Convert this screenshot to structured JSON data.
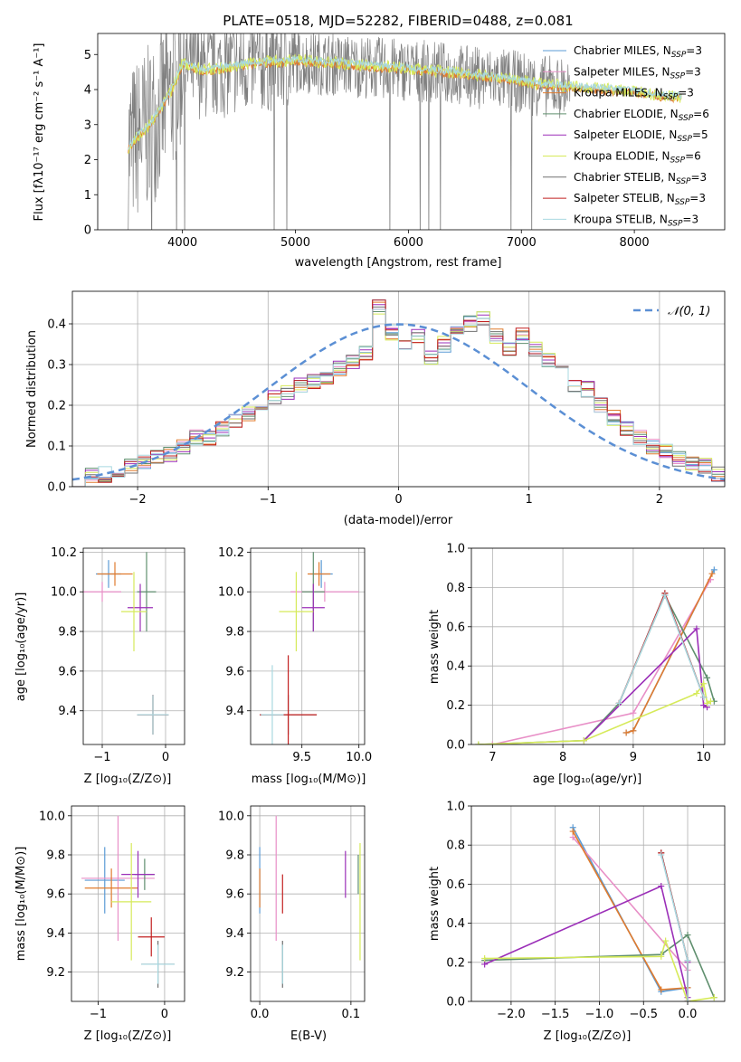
{
  "colors": {
    "Chabrier MILES": "#5b9bd5",
    "Salpeter MILES": "#e88fc7",
    "Kroupa MILES": "#e07b2e",
    "Chabrier ELODIE": "#5f8f6e",
    "Salpeter ELODIE": "#9b2fb8",
    "Kroupa ELODIE": "#d6ea5a",
    "Chabrier STELIB": "#707070",
    "Salpeter STELIB": "#c22020",
    "Kroupa STELIB": "#a8d8e0",
    "normal": "#5b8fd4"
  },
  "chart_data": [
    {
      "type": "line",
      "title": "PLATE=0518, MJD=52282, FIBERID=0488, z=0.081",
      "xlabel": "wavelength [Angstrom, rest frame]",
      "ylabel": "Flux [fλ10⁻¹⁷ erg cm⁻² s⁻¹ A⁻¹]",
      "xlim": [
        3250,
        8800
      ],
      "ylim": [
        0,
        5.6
      ],
      "xticks": [
        4000,
        5000,
        6000,
        7000,
        8000
      ],
      "yticks": [
        0,
        1,
        2,
        3,
        4,
        5
      ],
      "legend_position": "top-right",
      "legend": [
        {
          "name": "Chabrier MILES",
          "sub": "SSP",
          "n": "=3"
        },
        {
          "name": "Salpeter MILES",
          "sub": "SSP",
          "n": "=3"
        },
        {
          "name": "Kroupa MILES",
          "sub": "SSP",
          "n": "=3"
        },
        {
          "name": "Chabrier ELODIE",
          "sub": "SSP",
          "n": "=6"
        },
        {
          "name": "Salpeter ELODIE",
          "sub": "SSP",
          "n": "=5"
        },
        {
          "name": "Kroupa ELODIE",
          "sub": "SSP",
          "n": "=6"
        },
        {
          "name": "Chabrier STELIB",
          "sub": "SSP",
          "n": "=3"
        },
        {
          "name": "Salpeter STELIB",
          "sub": "SSP",
          "n": "=3"
        },
        {
          "name": "Kroupa STELIB",
          "sub": "SSP",
          "n": "=3"
        }
      ],
      "observed_series_color": "#808080",
      "model_continuum": {
        "x": [
          3520,
          3600,
          3700,
          3800,
          3900,
          4000,
          4100,
          4200,
          4400,
          4600,
          4800,
          5000,
          5200,
          5400,
          5600,
          5800,
          6000,
          6200,
          6400,
          6600,
          6800,
          7000,
          7200,
          7400,
          7600,
          7800,
          8000,
          8200,
          8400
        ],
        "y": [
          2.3,
          2.6,
          2.9,
          3.4,
          3.9,
          4.7,
          4.6,
          4.5,
          4.6,
          4.7,
          4.75,
          4.8,
          4.75,
          4.7,
          4.65,
          4.6,
          4.55,
          4.5,
          4.45,
          4.35,
          4.3,
          4.2,
          4.1,
          4.05,
          4.0,
          3.95,
          3.9,
          3.8,
          3.75
        ]
      }
    },
    {
      "type": "histogram",
      "xlabel": "(data-model)/error",
      "ylabel": "Normed distribution",
      "xlim": [
        -2.5,
        2.5
      ],
      "ylim": [
        0,
        0.48
      ],
      "xticks": [
        -2,
        -1,
        0,
        1,
        2
      ],
      "yticks": [
        0.0,
        0.1,
        0.2,
        0.3,
        0.4
      ],
      "legend_position": "top-right",
      "legend_label": "𝒩(0, 1)",
      "bin_width": 0.1,
      "bins_start": -2.5,
      "values": [
        0.02,
        0.03,
        0.03,
        0.04,
        0.05,
        0.06,
        0.07,
        0.08,
        0.1,
        0.12,
        0.12,
        0.14,
        0.16,
        0.18,
        0.2,
        0.22,
        0.23,
        0.25,
        0.26,
        0.27,
        0.29,
        0.31,
        0.33,
        0.44,
        0.38,
        0.35,
        0.37,
        0.32,
        0.35,
        0.38,
        0.4,
        0.41,
        0.37,
        0.34,
        0.37,
        0.34,
        0.31,
        0.3,
        0.25,
        0.24,
        0.2,
        0.17,
        0.14,
        0.12,
        0.1,
        0.09,
        0.07,
        0.06,
        0.05,
        0.03
      ]
    },
    {
      "type": "errorbar",
      "xlabel": "Z [log₁₀(Z/Z⊙)]",
      "ylabel": "age  [log₁₀(age/yr)]",
      "xlim": [
        -1.3,
        0.3
      ],
      "ylim": [
        9.23,
        10.22
      ],
      "xticks": [
        -1,
        0
      ],
      "yticks": [
        9.4,
        9.6,
        9.8,
        10.0,
        10.2
      ],
      "points": [
        {
          "series": "Chabrier MILES",
          "x": -0.9,
          "y": 10.09,
          "xerr": 0.2,
          "yerr": 0.07
        },
        {
          "series": "Salpeter MILES",
          "x": -1.0,
          "y": 10.0,
          "xerr": 0.3,
          "yerr": 0.05
        },
        {
          "series": "Kroupa MILES",
          "x": -0.8,
          "y": 10.09,
          "xerr": 0.28,
          "yerr": 0.06
        },
        {
          "series": "Chabrier ELODIE",
          "x": -0.3,
          "y": 10.0,
          "xerr": 0.15,
          "yerr": 0.2
        },
        {
          "series": "Salpeter ELODIE",
          "x": -0.4,
          "y": 9.92,
          "xerr": 0.2,
          "yerr": 0.12
        },
        {
          "series": "Kroupa ELODIE",
          "x": -0.5,
          "y": 9.9,
          "xerr": 0.2,
          "yerr": 0.2
        },
        {
          "series": "Chabrier STELIB",
          "x": -0.2,
          "y": 9.38,
          "xerr": 0.25,
          "yerr": 0.1
        },
        {
          "series": "Salpeter STELIB",
          "x": -0.2,
          "y": 9.38,
          "xerr": 0.25,
          "yerr": 0.1
        },
        {
          "series": "Kroupa STELIB",
          "x": -0.2,
          "y": 9.38,
          "xerr": 0.25,
          "yerr": 0.1
        }
      ]
    },
    {
      "type": "errorbar",
      "xlabel": "mass [log₁₀(M/M⊙)]",
      "xlim": [
        9.05,
        10.05
      ],
      "ylim": [
        9.23,
        10.22
      ],
      "xticks": [
        9.5,
        10.0
      ],
      "yticks": [
        9.4,
        9.6,
        9.8,
        10.0,
        10.2
      ],
      "points": [
        {
          "series": "Chabrier MILES",
          "x": 9.67,
          "y": 10.09,
          "xerr": 0.1,
          "yerr": 0.07
        },
        {
          "series": "Salpeter MILES",
          "x": 9.7,
          "y": 10.0,
          "xerr": 0.3,
          "yerr": 0.05
        },
        {
          "series": "Kroupa MILES",
          "x": 9.65,
          "y": 10.09,
          "xerr": 0.1,
          "yerr": 0.06
        },
        {
          "series": "Chabrier ELODIE",
          "x": 9.6,
          "y": 10.0,
          "xerr": 0.1,
          "yerr": 0.2
        },
        {
          "series": "Salpeter ELODIE",
          "x": 9.6,
          "y": 9.92,
          "xerr": 0.1,
          "yerr": 0.12
        },
        {
          "series": "Kroupa ELODIE",
          "x": 9.45,
          "y": 9.9,
          "xerr": 0.15,
          "yerr": 0.2
        },
        {
          "series": "Chabrier STELIB",
          "x": 9.38,
          "y": 9.38,
          "xerr": 0.25,
          "yerr": 0.1
        },
        {
          "series": "Salpeter STELIB",
          "x": 9.38,
          "y": 9.38,
          "xerr": 0.25,
          "yerr": 0.3
        },
        {
          "series": "Kroupa STELIB",
          "x": 9.24,
          "y": 9.38,
          "xerr": 0.1,
          "yerr": 0.25
        }
      ]
    },
    {
      "type": "line",
      "xlabel": "age  [log₁₀(age/yr)]",
      "ylabel": "mass weight",
      "xlim": [
        6.7,
        10.3
      ],
      "ylim": [
        0,
        1.0
      ],
      "xticks": [
        7,
        8,
        9,
        10
      ],
      "yticks": [
        0.0,
        0.2,
        0.4,
        0.6,
        0.8,
        1.0
      ],
      "series": [
        {
          "name": "Chabrier MILES",
          "x": [
            8.9,
            9.0,
            10.15
          ],
          "y": [
            0.06,
            0.07,
            0.89
          ]
        },
        {
          "name": "Salpeter MILES",
          "x": [
            7.0,
            9.0,
            10.1
          ],
          "y": [
            0.0,
            0.16,
            0.84
          ]
        },
        {
          "name": "Kroupa MILES",
          "x": [
            8.9,
            9.0,
            10.12
          ],
          "y": [
            0.06,
            0.07,
            0.87
          ]
        },
        {
          "name": "Chabrier ELODIE",
          "x": [
            6.8,
            8.3,
            8.8,
            9.45,
            10.05,
            10.15
          ],
          "y": [
            0.0,
            0.02,
            0.21,
            0.76,
            0.34,
            0.22
          ]
        },
        {
          "name": "Salpeter ELODIE",
          "x": [
            8.3,
            9.9,
            10.0,
            10.05
          ],
          "y": [
            0.02,
            0.59,
            0.2,
            0.19
          ]
        },
        {
          "name": "Kroupa ELODIE",
          "x": [
            6.8,
            8.3,
            9.9,
            10.0,
            10.05,
            10.1
          ],
          "y": [
            0.0,
            0.02,
            0.26,
            0.31,
            0.21,
            0.22
          ]
        },
        {
          "name": "Chabrier STELIB",
          "x": [
            8.8,
            9.45,
            10.0
          ],
          "y": [
            0.21,
            0.77,
            0.24
          ]
        },
        {
          "name": "Salpeter STELIB",
          "x": [
            8.8,
            9.45,
            10.0
          ],
          "y": [
            0.21,
            0.77,
            0.24
          ]
        },
        {
          "name": "Kroupa STELIB",
          "x": [
            8.8,
            9.45,
            10.0
          ],
          "y": [
            0.21,
            0.76,
            0.24
          ]
        }
      ]
    },
    {
      "type": "errorbar",
      "xlabel": "Z [log₁₀(Z/Z⊙)]",
      "ylabel": "mass [log₁₀(M/M⊙)]",
      "xlim": [
        -1.4,
        0.3
      ],
      "ylim": [
        9.05,
        10.05
      ],
      "xticks": [
        -1,
        0
      ],
      "yticks": [
        9.2,
        9.4,
        9.6,
        9.8,
        10.0
      ],
      "points": [
        {
          "series": "Chabrier MILES",
          "x": -0.9,
          "y": 9.67,
          "xerr": 0.3,
          "yerr": 0.17
        },
        {
          "series": "Salpeter MILES",
          "x": -0.7,
          "y": 9.68,
          "xerr": 0.55,
          "yerr": 0.32
        },
        {
          "series": "Kroupa MILES",
          "x": -0.8,
          "y": 9.63,
          "xerr": 0.4,
          "yerr": 0.1
        },
        {
          "series": "Chabrier ELODIE",
          "x": -0.3,
          "y": 9.7,
          "xerr": 0.15,
          "yerr": 0.08
        },
        {
          "series": "Salpeter ELODIE",
          "x": -0.4,
          "y": 9.7,
          "xerr": 0.25,
          "yerr": 0.12
        },
        {
          "series": "Kroupa ELODIE",
          "x": -0.5,
          "y": 9.56,
          "xerr": 0.3,
          "yerr": 0.3
        },
        {
          "series": "Chabrier STELIB",
          "x": -0.1,
          "y": 9.24,
          "xerr": 0.25,
          "yerr": 0.12
        },
        {
          "series": "Salpeter STELIB",
          "x": -0.2,
          "y": 9.38,
          "xerr": 0.2,
          "yerr": 0.1
        },
        {
          "series": "Kroupa STELIB",
          "x": -0.1,
          "y": 9.24,
          "xerr": 0.25,
          "yerr": 0.1
        }
      ]
    },
    {
      "type": "errorbar",
      "xlabel": "E(B-V)",
      "xlim": [
        -0.01,
        0.115
      ],
      "ylim": [
        9.05,
        10.05
      ],
      "xticks": [
        0.0,
        0.1
      ],
      "yticks": [
        9.2,
        9.4,
        9.6,
        9.8,
        10.0
      ],
      "points": [
        {
          "series": "Chabrier MILES",
          "x": 0.0,
          "y": 9.67,
          "xerr": 0,
          "yerr": 0.17
        },
        {
          "series": "Salpeter MILES",
          "x": 0.018,
          "y": 9.68,
          "xerr": 0,
          "yerr": 0.32
        },
        {
          "series": "Kroupa MILES",
          "x": 0.0,
          "y": 9.63,
          "xerr": 0,
          "yerr": 0.1
        },
        {
          "series": "Chabrier ELODIE",
          "x": 0.108,
          "y": 9.7,
          "xerr": 0,
          "yerr": 0.1
        },
        {
          "series": "Salpeter ELODIE",
          "x": 0.094,
          "y": 9.7,
          "xerr": 0,
          "yerr": 0.12
        },
        {
          "series": "Kroupa ELODIE",
          "x": 0.11,
          "y": 9.56,
          "xerr": 0,
          "yerr": 0.3
        },
        {
          "series": "Chabrier STELIB",
          "x": 0.025,
          "y": 9.24,
          "xerr": 0,
          "yerr": 0.12
        },
        {
          "series": "Salpeter STELIB",
          "x": 0.025,
          "y": 9.6,
          "xerr": 0,
          "yerr": 0.1
        },
        {
          "series": "Kroupa STELIB",
          "x": 0.025,
          "y": 9.24,
          "xerr": 0,
          "yerr": 0.1
        }
      ]
    },
    {
      "type": "line",
      "xlabel": "Z [log₁₀(Z/Z⊙)]",
      "ylabel": "mass weight",
      "xlim": [
        -2.45,
        0.42
      ],
      "ylim": [
        0,
        1.0
      ],
      "xticks": [
        -2.0,
        -1.5,
        -1.0,
        -0.5,
        0.0
      ],
      "yticks": [
        0.0,
        0.2,
        0.4,
        0.6,
        0.8,
        1.0
      ],
      "series": [
        {
          "name": "Chabrier MILES",
          "x": [
            -1.3,
            -0.3,
            0.0
          ],
          "y": [
            0.89,
            0.05,
            0.07
          ]
        },
        {
          "name": "Salpeter MILES",
          "x": [
            -1.3,
            0.0,
            0.0
          ],
          "y": [
            0.84,
            0.16,
            0.0
          ]
        },
        {
          "name": "Kroupa MILES",
          "x": [
            -1.3,
            -0.3,
            0.0
          ],
          "y": [
            0.87,
            0.06,
            0.07
          ]
        },
        {
          "name": "Chabrier ELODIE",
          "x": [
            -2.3,
            -0.3,
            0.0,
            0.3
          ],
          "y": [
            0.21,
            0.24,
            0.34,
            0.02
          ]
        },
        {
          "name": "Salpeter ELODIE",
          "x": [
            -2.3,
            -0.3,
            0.0,
            0.0
          ],
          "y": [
            0.19,
            0.59,
            0.02,
            0.2
          ]
        },
        {
          "name": "Kroupa ELODIE",
          "x": [
            -2.3,
            -0.3,
            -0.25,
            0.0,
            0.3
          ],
          "y": [
            0.22,
            0.23,
            0.31,
            0.0,
            0.02
          ]
        },
        {
          "name": "Chabrier STELIB",
          "x": [
            -0.3,
            0.0,
            0.0
          ],
          "y": [
            0.76,
            0.21,
            0.0
          ]
        },
        {
          "name": "Salpeter STELIB",
          "x": [
            -0.3,
            0.0,
            0.0
          ],
          "y": [
            0.76,
            0.21,
            0.0
          ]
        },
        {
          "name": "Kroupa STELIB",
          "x": [
            -0.3,
            0.0,
            0.0
          ],
          "y": [
            0.75,
            0.21,
            0.0
          ]
        }
      ]
    }
  ]
}
